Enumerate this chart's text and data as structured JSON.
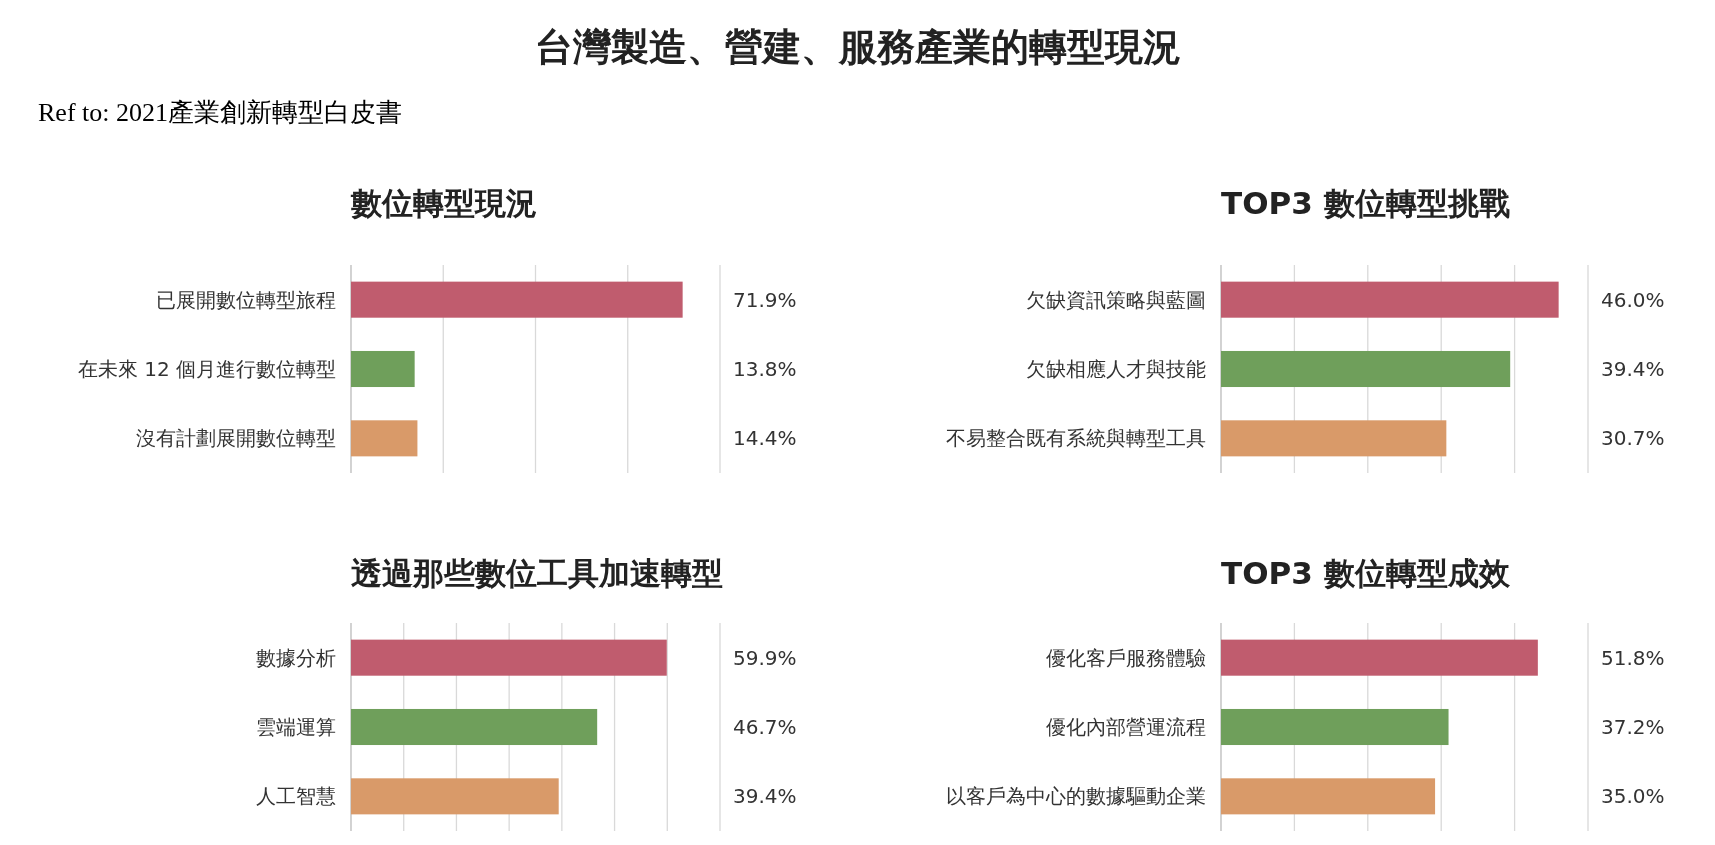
{
  "chart_data": [
    {
      "type": "bar",
      "orientation": "horizontal",
      "title": "數位轉型現況",
      "annotations": [
        "台灣製造、營建、服務產業的轉型現況",
        "Ref to: 2021產業創新轉型白皮書"
      ],
      "categories": [
        "已展開數位轉型旅程",
        "在未來 12 個月進行數位轉型",
        "沒有計劃展開數位轉型"
      ],
      "values": [
        71.9,
        13.8,
        14.4
      ],
      "colors": [
        "#c05c6e",
        "#6f9f5b",
        "#d99a69"
      ],
      "value_labels": [
        "71.9%",
        "13.8%",
        "14.4%"
      ],
      "xlim": [
        0,
        80
      ],
      "xticks": [
        {
          "value": 0,
          "label": null
        },
        {
          "value": 20,
          "label": null
        },
        {
          "value": 40,
          "label": null
        },
        {
          "value": 60,
          "label": null
        },
        {
          "value": 80,
          "label": null
        }
      ],
      "grid": "x",
      "tick_labels": "y"
    },
    {
      "type": "bar",
      "orientation": "horizontal",
      "title": "TOP3 數位轉型挑戰",
      "categories": [
        "欠缺資訊策略與藍圖",
        "欠缺相應人才與技能",
        "不易整合既有系統與轉型工具"
      ],
      "values": [
        46.0,
        39.4,
        30.7
      ],
      "colors": [
        "#c05c6e",
        "#6f9f5b",
        "#d99a69"
      ],
      "value_labels": [
        "46.0%",
        "39.4%",
        "30.7%"
      ],
      "xlim": [
        0,
        50
      ],
      "xticks": [
        {
          "value": 0,
          "label": null
        },
        {
          "value": 10,
          "label": null
        },
        {
          "value": 20,
          "label": null
        },
        {
          "value": 30,
          "label": null
        },
        {
          "value": 40,
          "label": null
        },
        {
          "value": 50,
          "label": null
        }
      ],
      "grid": "x",
      "tick_labels": "y"
    },
    {
      "type": "bar",
      "orientation": "horizontal",
      "title": "透過那些數位工具加速轉型",
      "categories": [
        "數據分析",
        "雲端運算",
        "人工智慧"
      ],
      "values": [
        59.9,
        46.7,
        39.4
      ],
      "colors": [
        "#c05c6e",
        "#6f9f5b",
        "#d99a69"
      ],
      "value_labels": [
        "59.9%",
        "46.7%",
        "39.4%"
      ],
      "xlim": [
        0,
        70
      ],
      "xticks": [
        {
          "value": 0,
          "label": null
        },
        {
          "value": 10,
          "label": null
        },
        {
          "value": 20,
          "label": null
        },
        {
          "value": 30,
          "label": null
        },
        {
          "value": 40,
          "label": null
        },
        {
          "value": 50,
          "label": null
        },
        {
          "value": 60,
          "label": null
        },
        {
          "value": 70,
          "label": null
        }
      ],
      "grid": "x",
      "tick_labels": "y"
    },
    {
      "type": "bar",
      "orientation": "horizontal",
      "title": "TOP3 數位轉型成效",
      "categories": [
        "優化客戶服務體驗",
        "優化內部營運流程",
        "以客戶為中心的數據驅動企業"
      ],
      "values": [
        51.8,
        37.2,
        35.0
      ],
      "colors": [
        "#c05c6e",
        "#6f9f5b",
        "#d99a69"
      ],
      "value_labels": [
        "51.8%",
        "37.2%",
        "35.0%"
      ],
      "xlim": [
        0,
        60
      ],
      "xticks": [
        {
          "value": 0,
          "label": null
        },
        {
          "value": 12,
          "label": null
        },
        {
          "value": 24,
          "label": null
        },
        {
          "value": 36,
          "label": null
        },
        {
          "value": 48,
          "label": null
        },
        {
          "value": 60,
          "label": null
        }
      ],
      "grid": "x",
      "tick_labels": "y"
    }
  ]
}
